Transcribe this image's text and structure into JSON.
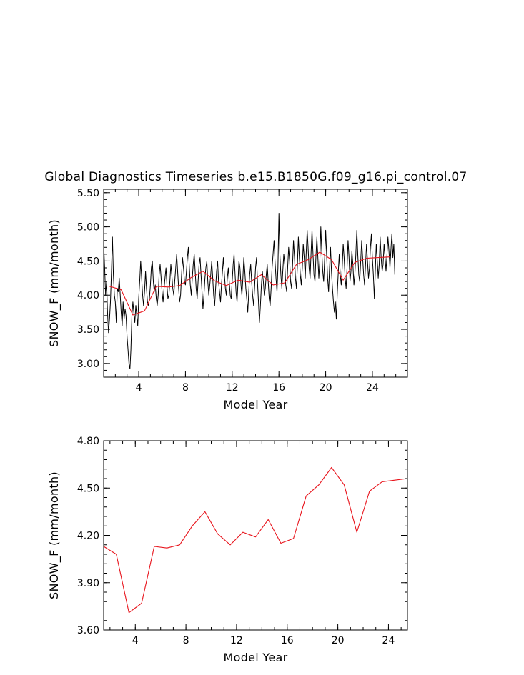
{
  "title": "Global Diagnostics Timeseries b.e15.B1850G.f09_g16.pi_control.07",
  "colors": {
    "monthly": "#000000",
    "annual": "#e8141c",
    "axes": "#000000"
  },
  "chart_data": [
    {
      "type": "line",
      "title": "Global Diagnostics Timeseries b.e15.B1850G.f09_g16.pi_control.07",
      "xlabel": "Model Year",
      "ylabel": "SNOW_F (mm/month)",
      "xlim": [
        1,
        27
      ],
      "ylim": [
        2.8,
        5.55
      ],
      "xticks": [
        4,
        8,
        12,
        16,
        20,
        24
      ],
      "xtick_labels": [
        "4",
        "8",
        "12",
        "16",
        "20",
        "24"
      ],
      "yticks": [
        3.0,
        3.5,
        4.0,
        4.5,
        5.0,
        5.5
      ],
      "ytick_labels": [
        "3.00",
        "3.50",
        "4.00",
        "4.50",
        "5.00",
        "5.50"
      ],
      "grid": false,
      "series": [
        {
          "role": "monthly",
          "color": "#000000",
          "x_start": 1.0,
          "x_step": 0.08333,
          "values": [
            4.75,
            4.4,
            4.0,
            4.2,
            3.75,
            3.45,
            3.65,
            3.9,
            4.35,
            4.85,
            4.3,
            4.0,
            3.9,
            3.6,
            4.1,
            4.05,
            4.25,
            4.0,
            3.75,
            3.55,
            3.9,
            3.65,
            3.8,
            3.7,
            3.4,
            3.2,
            3.0,
            2.92,
            3.2,
            3.7,
            3.9,
            3.75,
            3.6,
            3.85,
            3.7,
            3.55,
            3.95,
            4.2,
            4.5,
            4.25,
            4.0,
            3.85,
            4.05,
            4.35,
            4.1,
            3.9,
            3.85,
            3.95,
            4.15,
            4.4,
            4.5,
            4.2,
            4.05,
            4.15,
            3.95,
            3.85,
            4.0,
            4.3,
            4.45,
            4.25,
            4.05,
            3.9,
            4.1,
            4.25,
            4.4,
            4.15,
            3.95,
            4.0,
            4.2,
            4.45,
            4.3,
            4.1,
            4.0,
            4.2,
            4.4,
            4.6,
            4.35,
            4.1,
            3.9,
            4.0,
            4.3,
            4.55,
            4.4,
            4.2,
            4.15,
            4.35,
            4.55,
            4.7,
            4.4,
            4.15,
            4.0,
            4.25,
            4.45,
            4.6,
            4.35,
            4.1,
            3.95,
            4.2,
            4.45,
            4.55,
            4.3,
            4.05,
            3.8,
            4.0,
            4.25,
            4.4,
            4.5,
            4.2,
            4.0,
            4.15,
            4.3,
            4.5,
            4.25,
            4.0,
            3.85,
            4.1,
            4.35,
            4.5,
            4.2,
            4.05,
            3.9,
            4.15,
            4.35,
            4.55,
            4.3,
            4.1,
            4.0,
            4.25,
            4.4,
            4.2,
            4.0,
            3.95,
            4.2,
            4.45,
            4.6,
            4.3,
            4.05,
            3.9,
            4.2,
            4.5,
            4.4,
            4.15,
            4.0,
            4.25,
            4.55,
            4.35,
            4.1,
            3.95,
            3.75,
            4.05,
            4.3,
            4.45,
            4.2,
            4.0,
            3.85,
            4.1,
            4.4,
            4.55,
            4.2,
            3.9,
            3.6,
            3.85,
            4.15,
            4.35,
            4.2,
            4.0,
            4.1,
            4.3,
            4.45,
            4.2,
            3.95,
            3.85,
            4.1,
            4.4,
            4.6,
            4.8,
            4.5,
            4.25,
            4.05,
            4.4,
            5.2,
            4.6,
            4.3,
            4.1,
            4.35,
            4.6,
            4.45,
            4.15,
            4.05,
            4.4,
            4.7,
            4.5,
            4.2,
            4.1,
            4.45,
            4.8,
            4.55,
            4.25,
            4.1,
            4.45,
            4.85,
            4.55,
            4.3,
            4.15,
            4.4,
            4.75,
            4.55,
            4.25,
            4.6,
            4.95,
            4.7,
            4.4,
            4.25,
            4.6,
            4.95,
            4.6,
            4.3,
            4.2,
            4.55,
            4.85,
            4.55,
            4.25,
            4.5,
            5.0,
            4.65,
            4.35,
            4.2,
            4.55,
            4.95,
            4.6,
            4.25,
            4.05,
            4.4,
            4.7,
            4.35,
            4.1,
            3.9,
            3.75,
            3.9,
            3.65,
            4.05,
            4.35,
            4.6,
            4.3,
            4.15,
            4.4,
            4.75,
            4.55,
            4.25,
            4.1,
            4.4,
            4.8,
            4.55,
            4.2,
            4.35,
            4.65,
            4.45,
            4.15,
            4.3,
            4.6,
            4.95,
            4.6,
            4.3,
            4.2,
            4.5,
            4.8,
            4.55,
            4.3,
            4.15,
            4.45,
            4.75,
            4.5,
            4.25,
            4.4,
            4.7,
            4.9,
            4.55,
            4.3,
            3.95,
            4.35,
            4.75,
            4.5,
            4.25,
            4.45,
            4.85,
            4.55,
            4.35,
            4.45,
            4.75,
            4.55,
            4.35,
            4.6,
            4.85,
            4.65,
            4.4,
            4.65,
            4.9,
            4.55,
            4.75,
            4.3
          ]
        },
        {
          "role": "annual",
          "color": "#e8141c",
          "x": [
            1.5,
            2.5,
            3.5,
            4.5,
            5.5,
            6.5,
            7.5,
            8.5,
            9.5,
            10.5,
            11.5,
            12.5,
            13.5,
            14.5,
            15.5,
            16.5,
            17.5,
            18.5,
            19.5,
            20.5,
            21.5,
            22.5,
            23.5,
            24.5,
            25.5
          ],
          "values": [
            4.13,
            4.08,
            3.71,
            3.77,
            4.13,
            4.12,
            4.14,
            4.26,
            4.35,
            4.21,
            4.14,
            4.22,
            4.19,
            4.3,
            4.15,
            4.18,
            4.45,
            4.52,
            4.63,
            4.52,
            4.22,
            4.48,
            4.54,
            4.55,
            4.56
          ]
        }
      ]
    },
    {
      "type": "line",
      "title": "",
      "xlabel": "Model Year",
      "ylabel": "SNOW_F (mm/month)",
      "xlim": [
        1.5,
        25.5
      ],
      "ylim": [
        3.6,
        4.8
      ],
      "xticks": [
        4,
        8,
        12,
        16,
        20,
        24
      ],
      "xtick_labels": [
        "4",
        "8",
        "12",
        "16",
        "20",
        "24"
      ],
      "yticks": [
        3.6,
        3.9,
        4.2,
        4.5,
        4.8
      ],
      "ytick_labels": [
        "3.60",
        "3.90",
        "4.20",
        "4.50",
        "4.80"
      ],
      "grid": false,
      "series": [
        {
          "role": "annual",
          "color": "#e8141c",
          "x": [
            1.5,
            2.5,
            3.5,
            4.5,
            5.5,
            6.5,
            7.5,
            8.5,
            9.5,
            10.5,
            11.5,
            12.5,
            13.5,
            14.5,
            15.5,
            16.5,
            17.5,
            18.5,
            19.5,
            20.5,
            21.5,
            22.5,
            23.5,
            24.5,
            25.5
          ],
          "values": [
            4.13,
            4.08,
            3.71,
            3.77,
            4.13,
            4.12,
            4.14,
            4.26,
            4.35,
            4.21,
            4.14,
            4.22,
            4.19,
            4.3,
            4.15,
            4.18,
            4.45,
            4.52,
            4.63,
            4.52,
            4.22,
            4.48,
            4.54,
            4.55,
            4.56
          ]
        }
      ]
    }
  ]
}
